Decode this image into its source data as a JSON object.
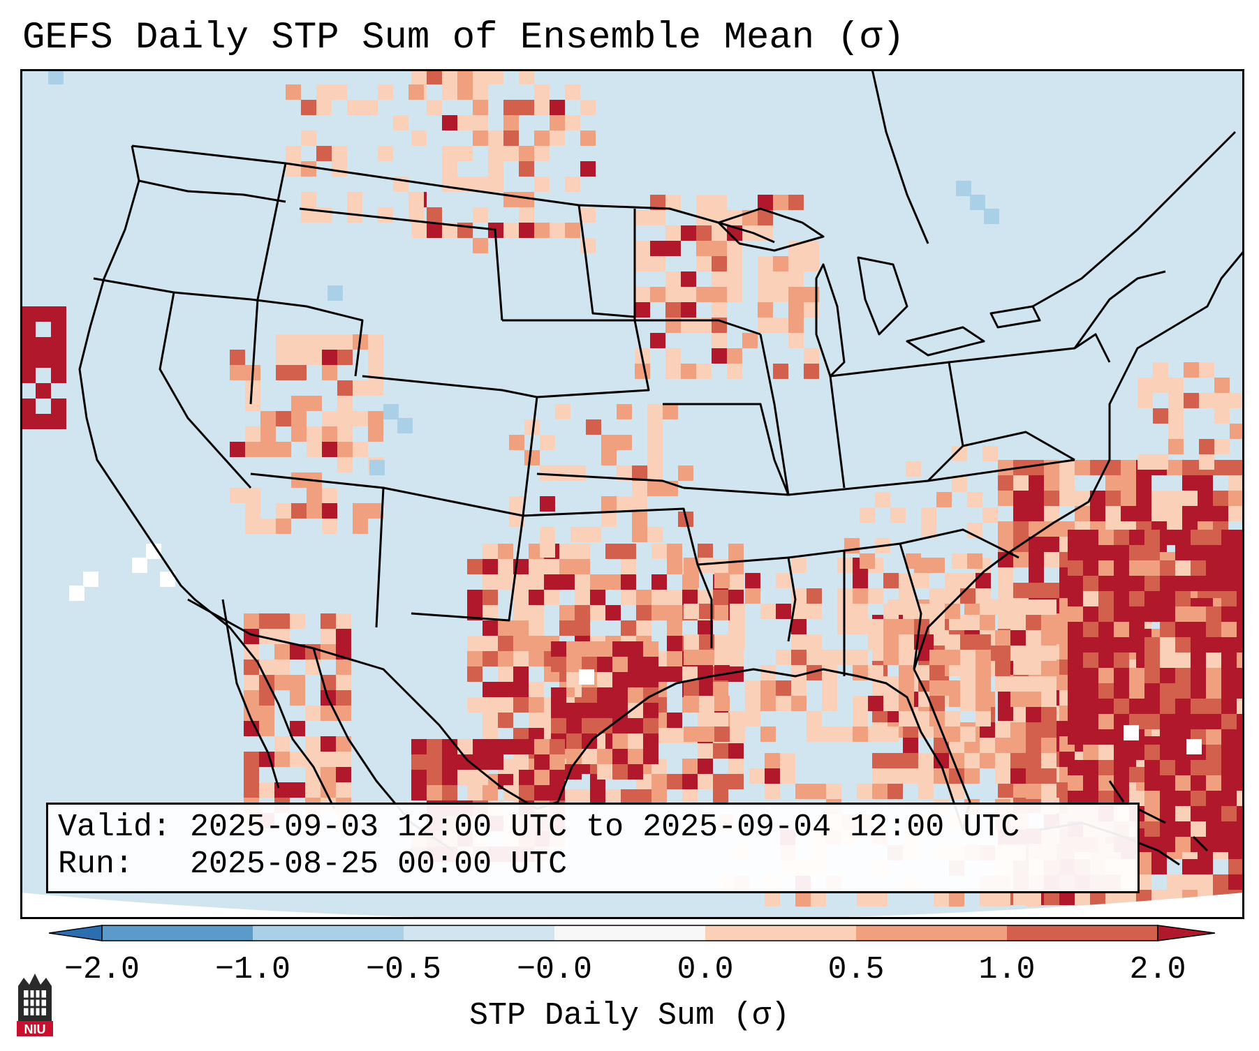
{
  "title": "GEFS Daily STP Sum of Ensemble Mean (σ)",
  "valid_line": "Valid: 2025-09-03 12:00 UTC to 2025-09-04 12:00 UTC",
  "run_line": "Run:   2025-08-25 00:00 UTC",
  "colorbar": {
    "label": "STP Daily Sum (σ)",
    "ticks": [
      "−2.0",
      "−1.0",
      "−0.5",
      "−0.0",
      "0.0",
      "0.5",
      "1.0",
      "2.0"
    ],
    "colors": [
      "#2b6fb0",
      "#5b9bcc",
      "#a9d0e6",
      "#d1e5f0",
      "#f7f7f7",
      "#fbd0b8",
      "#f0a07e",
      "#d2604d",
      "#b2182b"
    ]
  },
  "logo": {
    "text": "NIU",
    "icon": "niu-logo-icon"
  },
  "colors": {
    "ocean": "#d1e5f0",
    "light_red": "#fbd0b8",
    "medium_red": "#f0a07e",
    "red": "#d2604d",
    "dark_red": "#b2182b",
    "light_blue": "#a9d0e6",
    "blue": "#5b9bcc"
  }
}
